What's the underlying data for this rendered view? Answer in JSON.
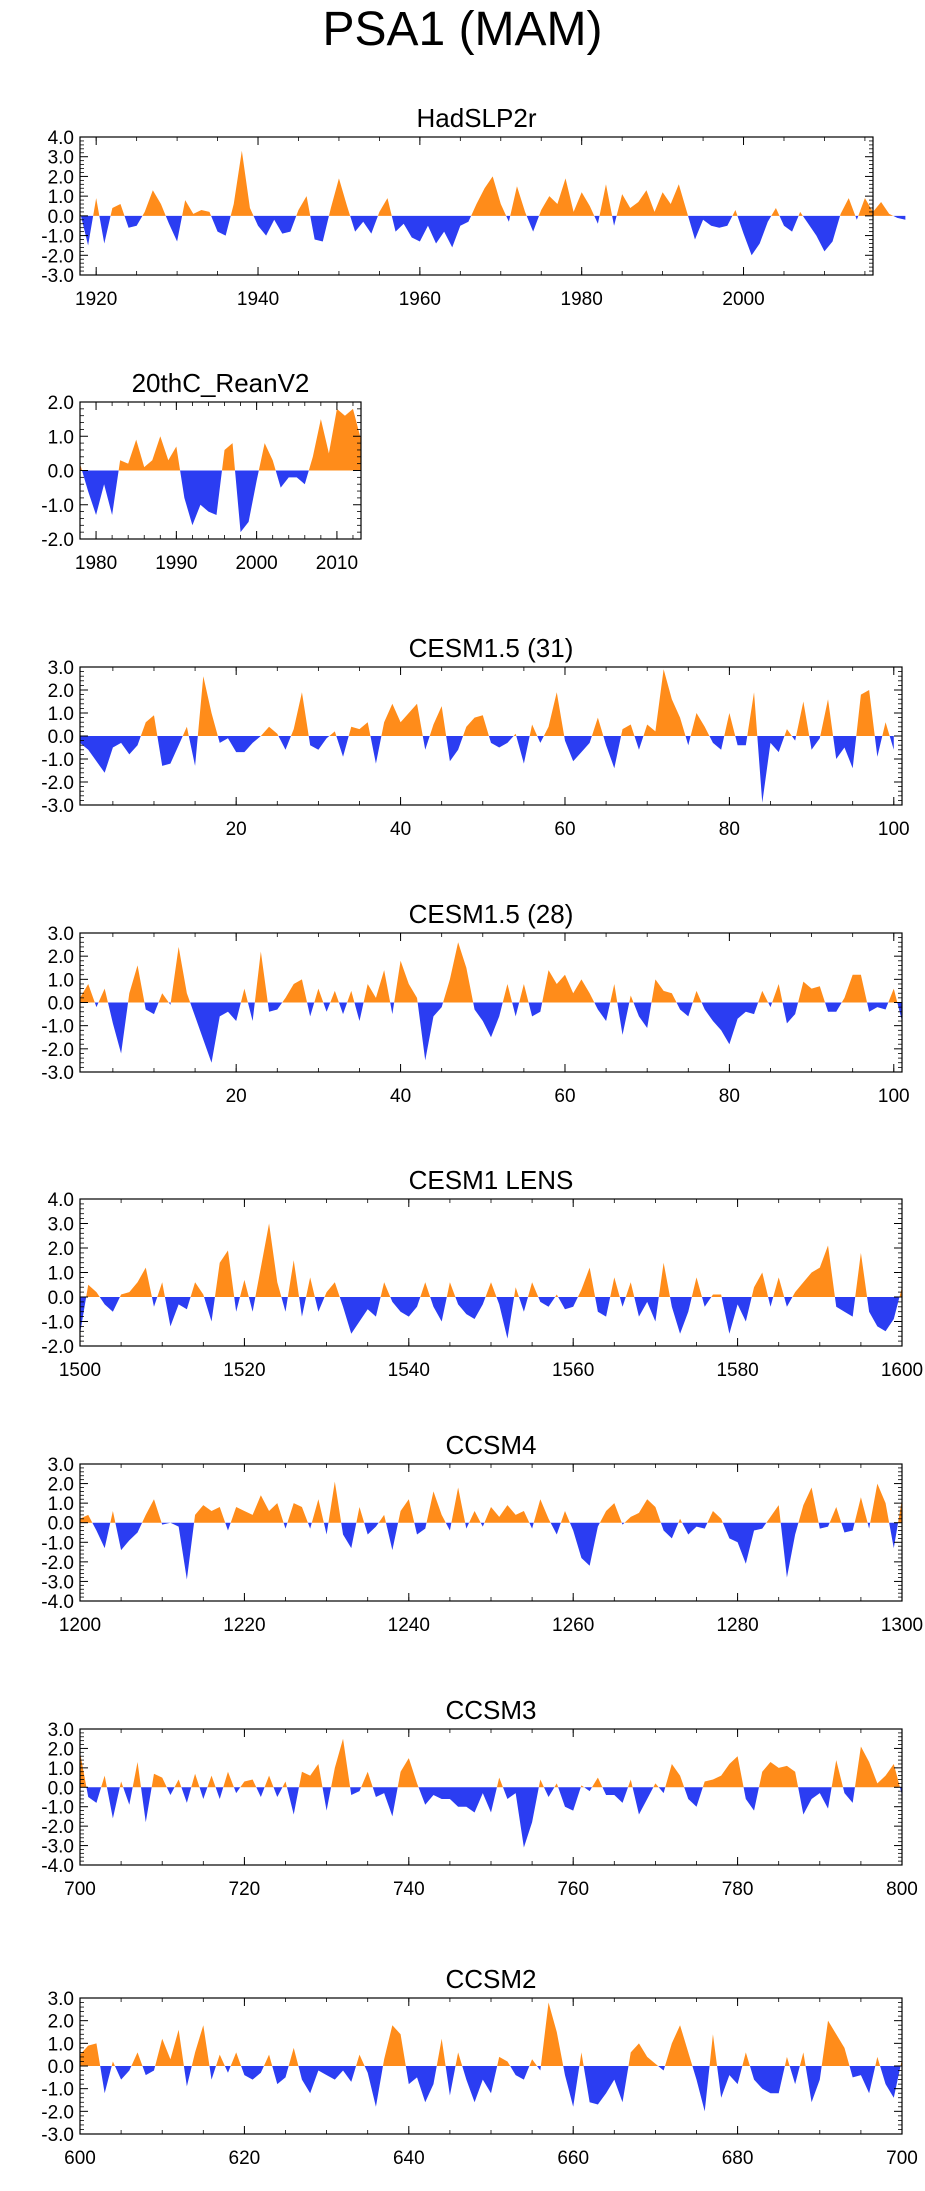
{
  "title": "PSA1 (MAM)",
  "colors": {
    "positive": "#ff8c1a",
    "negative": "#2b3df2",
    "frame": "#000000"
  },
  "chart_data": [
    {
      "type": "area",
      "title": "HadSLP2r",
      "xlim": [
        1918,
        2016
      ],
      "ylim": [
        -3,
        4
      ],
      "xticks": [
        1920,
        1940,
        1960,
        1980,
        2000
      ],
      "ytick_labels": [
        "4.0",
        "3.0",
        "2.0",
        "1.0",
        "0.0",
        "-1.0",
        "-2.0",
        "-3.0"
      ],
      "x_start": 1918,
      "values": [
        0.2,
        -1.5,
        0.9,
        -1.4,
        0.4,
        0.6,
        -0.6,
        -0.5,
        0.2,
        1.3,
        0.6,
        -0.4,
        -1.3,
        0.8,
        0.1,
        0.3,
        0.2,
        -0.8,
        -1.0,
        0.6,
        3.3,
        0.4,
        -0.5,
        -1.0,
        -0.2,
        -0.9,
        -0.8,
        0.3,
        1.0,
        -1.2,
        -1.3,
        0.4,
        1.9,
        0.5,
        -0.8,
        -0.3,
        -0.9,
        0.2,
        0.9,
        -0.8,
        -0.4,
        -1.1,
        -1.3,
        -0.5,
        -1.4,
        -0.8,
        -1.6,
        -0.5,
        -0.3,
        0.6,
        1.4,
        2.0,
        0.6,
        -0.3,
        1.5,
        0.2,
        -0.8,
        0.3,
        1.0,
        0.6,
        1.9,
        0.2,
        1.2,
        0.5,
        -0.4,
        1.6,
        -0.5,
        1.1,
        0.4,
        0.7,
        1.3,
        0.2,
        1.2,
        0.6,
        1.6,
        0.2,
        -1.2,
        -0.2,
        -0.5,
        -0.6,
        -0.5,
        0.3,
        -0.9,
        -2.0,
        -1.4,
        -0.3,
        0.4,
        -0.5,
        -0.8,
        0.2,
        -0.4,
        -1.0,
        -1.8,
        -1.3,
        0.1,
        0.9,
        -0.2,
        0.9,
        0.2,
        0.7,
        0.1,
        -0.1,
        -0.2
      ]
    },
    {
      "type": "area",
      "title": "20thC_ReanV2",
      "xlim": [
        1978,
        2013
      ],
      "ylim": [
        -2,
        2
      ],
      "xticks": [
        1980,
        1990,
        2000,
        2010
      ],
      "ytick_labels": [
        "2.0",
        "1.0",
        "0.0",
        "-1.0",
        "-2.0"
      ],
      "x_start": 1978,
      "values": [
        0.2,
        -0.6,
        -1.3,
        -0.4,
        -1.3,
        0.3,
        0.2,
        0.9,
        0.1,
        0.3,
        1.0,
        0.3,
        0.7,
        -0.8,
        -1.6,
        -1.0,
        -1.2,
        -1.3,
        0.6,
        0.8,
        -1.8,
        -1.5,
        -0.3,
        0.8,
        0.3,
        -0.5,
        -0.2,
        -0.2,
        -0.4,
        0.4,
        1.5,
        0.5,
        1.8,
        1.6,
        1.8,
        0.9
      ]
    },
    {
      "type": "area",
      "title": "CESM1.5 (31)",
      "xlim": [
        1,
        101
      ],
      "ylim": [
        -3,
        3
      ],
      "xticks": [
        20,
        40,
        60,
        80,
        100
      ],
      "ytick_labels": [
        "3.0",
        "2.0",
        "1.0",
        "0.0",
        "-1.0",
        "-2.0",
        "-3.0"
      ],
      "x_start": 1,
      "values": [
        -0.3,
        -0.6,
        -1.1,
        -1.6,
        -0.5,
        -0.3,
        -0.8,
        -0.4,
        0.6,
        0.9,
        -1.3,
        -1.2,
        -0.4,
        0.4,
        -1.3,
        2.6,
        1.0,
        -0.3,
        -0.1,
        -0.7,
        -0.7,
        -0.3,
        0.0,
        0.4,
        0.1,
        -0.6,
        0.3,
        1.9,
        -0.4,
        -0.6,
        -0.1,
        0.2,
        -0.9,
        0.4,
        0.3,
        0.6,
        -1.2,
        0.6,
        1.4,
        0.6,
        1.0,
        1.4,
        -0.6,
        0.5,
        1.3,
        -1.1,
        -0.6,
        0.4,
        0.8,
        0.9,
        -0.3,
        -0.5,
        -0.3,
        0.1,
        -1.2,
        0.5,
        -0.3,
        0.4,
        1.9,
        -0.2,
        -1.1,
        -0.7,
        -0.3,
        0.8,
        -0.4,
        -1.4,
        0.3,
        0.5,
        -0.6,
        0.5,
        0.2,
        2.9,
        1.6,
        0.8,
        -0.4,
        1.0,
        0.4,
        -0.3,
        -0.6,
        1.0,
        -0.4,
        -0.4,
        1.9,
        -2.9,
        -0.3,
        -0.7,
        0.3,
        -0.2,
        1.5,
        -0.6,
        -0.1,
        1.6,
        -1.0,
        -0.5,
        -1.4,
        1.8,
        2.0,
        -0.9,
        0.6,
        -0.6
      ]
    },
    {
      "type": "area",
      "title": "CESM1.5 (28)",
      "xlim": [
        1,
        101
      ],
      "ylim": [
        -3,
        3
      ],
      "xticks": [
        20,
        40,
        60,
        80,
        100
      ],
      "ytick_labels": [
        "3.0",
        "2.0",
        "1.0",
        "0.0",
        "-1.0",
        "-2.0",
        "-3.0"
      ],
      "x_start": 1,
      "values": [
        0.2,
        0.8,
        -0.2,
        0.6,
        -0.9,
        -2.2,
        0.4,
        1.6,
        -0.3,
        -0.5,
        0.4,
        -0.1,
        2.4,
        0.4,
        -0.6,
        -1.6,
        -2.6,
        -0.6,
        -0.4,
        -0.8,
        0.6,
        -0.8,
        2.2,
        -0.4,
        -0.3,
        0.2,
        0.8,
        1.0,
        -0.6,
        0.6,
        -0.4,
        0.5,
        -0.5,
        0.5,
        -0.8,
        0.8,
        0.2,
        1.4,
        -0.5,
        1.8,
        0.8,
        0.2,
        -2.5,
        -0.6,
        -0.2,
        1.0,
        2.6,
        1.5,
        -0.3,
        -0.8,
        -1.5,
        -0.6,
        0.8,
        -0.6,
        0.8,
        -0.6,
        -0.4,
        1.4,
        0.8,
        1.2,
        0.4,
        1.0,
        0.4,
        -0.3,
        -0.8,
        0.8,
        -1.4,
        0.3,
        -0.6,
        -1.1,
        1.0,
        0.5,
        0.4,
        -0.3,
        -0.6,
        0.5,
        -0.3,
        -0.8,
        -1.2,
        -1.8,
        -0.7,
        -0.4,
        -0.5,
        0.5,
        -0.2,
        0.8,
        -0.9,
        -0.5,
        0.9,
        0.6,
        0.7,
        -0.4,
        -0.4,
        0.2,
        1.2,
        1.2,
        -0.4,
        -0.2,
        -0.3,
        0.6,
        -0.8
      ]
    },
    {
      "type": "area",
      "title": "CESM1 LENS",
      "xlim": [
        1500,
        1600
      ],
      "ylim": [
        -2,
        4
      ],
      "xticks": [
        1500,
        1520,
        1540,
        1560,
        1580,
        1600
      ],
      "ytick_labels": [
        "4.0",
        "3.0",
        "2.0",
        "1.0",
        "0.0",
        "-1.0",
        "-2.0"
      ],
      "x_start": 1500,
      "values": [
        -1.5,
        0.5,
        0.2,
        -0.3,
        -0.6,
        0.1,
        0.2,
        0.6,
        1.2,
        -0.4,
        0.6,
        -1.2,
        -0.3,
        -0.5,
        0.6,
        0.1,
        -1.0,
        1.4,
        1.9,
        -0.6,
        0.7,
        -0.6,
        1.2,
        3.0,
        0.6,
        -0.6,
        1.5,
        -0.8,
        0.8,
        -0.6,
        0.2,
        0.6,
        -0.4,
        -1.5,
        -1.0,
        -0.5,
        -0.8,
        0.6,
        -0.2,
        -0.6,
        -0.8,
        -0.4,
        0.6,
        -0.4,
        -1.0,
        0.6,
        -0.3,
        -0.7,
        -0.9,
        -0.3,
        0.6,
        -0.3,
        -1.7,
        0.4,
        -0.6,
        0.6,
        -0.2,
        -0.4,
        0.1,
        -0.5,
        -0.4,
        0.3,
        1.2,
        -0.6,
        -0.8,
        0.8,
        -0.4,
        0.6,
        -0.8,
        -0.2,
        -1.0,
        1.4,
        -0.4,
        -1.5,
        -0.6,
        0.8,
        -0.4,
        0.1,
        0.1,
        -1.5,
        -0.3,
        -1.0,
        0.4,
        1.0,
        -0.4,
        0.8,
        -0.4,
        0.2,
        0.6,
        1.0,
        1.2,
        2.1,
        -0.4,
        -0.6,
        -0.8,
        1.8,
        -0.6,
        -1.2,
        -1.4,
        -0.9,
        0.4
      ]
    },
    {
      "type": "area",
      "title": "CCSM4",
      "xlim": [
        1200,
        1300
      ],
      "ylim": [
        -4,
        3
      ],
      "xticks": [
        1200,
        1220,
        1240,
        1260,
        1280,
        1300
      ],
      "ytick_labels": [
        "3.0",
        "2.0",
        "1.0",
        "0.0",
        "-1.0",
        "-2.0",
        "-3.0",
        "-4.0"
      ],
      "x_start": 1200,
      "values": [
        0.2,
        0.4,
        -0.4,
        -1.3,
        0.6,
        -1.4,
        -0.9,
        -0.5,
        0.4,
        1.2,
        -0.1,
        0.0,
        -0.2,
        -2.9,
        0.4,
        0.9,
        0.6,
        0.8,
        -0.4,
        0.8,
        0.6,
        0.4,
        1.4,
        0.6,
        1.0,
        -0.3,
        1.0,
        0.8,
        -0.3,
        1.2,
        -0.6,
        2.1,
        -0.6,
        -1.3,
        0.8,
        -0.6,
        -0.2,
        0.4,
        -1.4,
        0.6,
        1.2,
        -0.6,
        -0.3,
        1.6,
        0.4,
        -0.4,
        1.8,
        -0.3,
        0.6,
        -0.2,
        0.8,
        0.3,
        0.9,
        0.4,
        0.6,
        -0.3,
        1.2,
        0.2,
        -0.6,
        0.6,
        -0.4,
        -1.8,
        -2.2,
        -0.2,
        0.6,
        1.0,
        -0.1,
        0.3,
        0.5,
        1.2,
        0.8,
        -0.4,
        -0.8,
        0.2,
        -0.6,
        -0.2,
        -0.3,
        0.6,
        0.2,
        -0.8,
        -1.0,
        -2.1,
        -0.4,
        -0.3,
        0.3,
        0.9,
        -2.8,
        -0.6,
        0.9,
        1.8,
        -0.3,
        -0.2,
        0.8,
        -0.5,
        -0.4,
        1.3,
        -0.3,
        2.0,
        1.0,
        -1.3,
        1.2
      ]
    },
    {
      "type": "area",
      "title": "CCSM3",
      "xlim": [
        700,
        800
      ],
      "ylim": [
        -4,
        3
      ],
      "xticks": [
        700,
        720,
        740,
        760,
        780,
        800
      ],
      "ytick_labels": [
        "3.0",
        "2.0",
        "1.0",
        "0.0",
        "-1.0",
        "-2.0",
        "-3.0",
        "-4.0"
      ],
      "x_start": 700,
      "values": [
        1.8,
        -0.5,
        -0.8,
        0.6,
        -1.6,
        0.3,
        -0.9,
        1.3,
        -1.8,
        0.7,
        0.5,
        -0.4,
        0.4,
        -0.8,
        0.7,
        -0.6,
        0.6,
        -0.6,
        0.8,
        -0.3,
        0.3,
        0.4,
        -0.5,
        0.6,
        -0.5,
        0.3,
        -1.4,
        0.8,
        0.6,
        1.2,
        -1.2,
        1.0,
        2.5,
        -0.4,
        -0.2,
        0.8,
        -0.5,
        -0.3,
        -1.5,
        0.8,
        1.5,
        0.2,
        -0.9,
        -0.4,
        -0.6,
        -0.6,
        -1.0,
        -1.0,
        -1.3,
        -0.3,
        -1.3,
        0.5,
        -0.6,
        -0.3,
        -3.1,
        -1.8,
        0.4,
        -0.5,
        0.2,
        -1.0,
        -1.2,
        0.1,
        -0.2,
        0.5,
        -0.4,
        -0.4,
        -0.8,
        0.4,
        -1.4,
        -0.6,
        0.2,
        -0.3,
        1.2,
        0.6,
        -0.6,
        -1.0,
        0.3,
        0.4,
        0.6,
        1.2,
        1.6,
        -0.6,
        -1.2,
        0.8,
        1.3,
        1.0,
        1.1,
        0.8,
        -1.4,
        -0.6,
        -0.3,
        -1.1,
        1.4,
        -0.3,
        -0.8,
        2.1,
        1.3,
        0.2,
        0.6,
        1.2,
        -0.4
      ]
    },
    {
      "type": "area",
      "title": "CCSM2",
      "xlim": [
        600,
        700
      ],
      "ylim": [
        -3,
        3
      ],
      "xticks": [
        600,
        620,
        640,
        660,
        680,
        700
      ],
      "ytick_labels": [
        "3.0",
        "2.0",
        "1.0",
        "0.0",
        "-1.0",
        "-2.0",
        "-3.0"
      ],
      "x_start": 600,
      "values": [
        0.5,
        0.9,
        1.0,
        -1.2,
        0.2,
        -0.6,
        -0.2,
        0.6,
        -0.4,
        -0.2,
        1.2,
        0.3,
        1.6,
        -0.9,
        0.6,
        1.8,
        -0.6,
        0.5,
        -0.3,
        0.6,
        -0.4,
        -0.6,
        -0.3,
        0.5,
        -0.8,
        -0.5,
        0.8,
        -0.6,
        -1.2,
        -0.2,
        -0.4,
        -0.6,
        -0.2,
        -0.7,
        0.5,
        -0.3,
        -1.8,
        0.3,
        1.8,
        1.4,
        -0.8,
        -0.5,
        -1.6,
        -0.8,
        1.2,
        -1.3,
        0.6,
        -0.6,
        -1.6,
        -0.6,
        -1.2,
        0.4,
        0.2,
        -0.4,
        -0.6,
        0.3,
        -0.2,
        2.8,
        1.5,
        -0.4,
        -1.8,
        0.6,
        -1.6,
        -1.7,
        -1.2,
        -0.6,
        -1.6,
        0.6,
        1.0,
        0.4,
        0.1,
        -0.2,
        1.0,
        1.8,
        0.6,
        -0.6,
        -2.0,
        1.4,
        -1.4,
        -0.4,
        -0.8,
        0.6,
        -0.6,
        -1.0,
        -1.2,
        -1.2,
        0.4,
        -0.8,
        0.6,
        -1.6,
        -0.6,
        2.0,
        1.4,
        0.8,
        -0.5,
        -0.4,
        -1.2,
        0.4,
        -0.8,
        -1.4,
        0.3
      ]
    }
  ]
}
